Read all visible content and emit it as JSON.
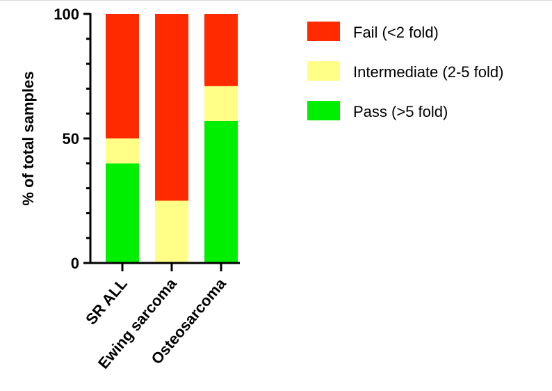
{
  "chart_data": {
    "type": "bar",
    "stacked": true,
    "categories": [
      "SR ALL",
      "Ewing sarcoma",
      "Osteosarcoma"
    ],
    "series": [
      {
        "name": "Pass (>5 fold)",
        "color": "#00ee00",
        "values": [
          40,
          0,
          57
        ]
      },
      {
        "name": "Intermediate (2-5 fold)",
        "color": "#ffff88",
        "values": [
          10,
          25,
          14
        ]
      },
      {
        "name": "Fail (<2 fold)",
        "color": "#ff2a00",
        "values": [
          50,
          75,
          29
        ]
      }
    ],
    "legend_order": [
      "Fail (<2 fold)",
      "Intermediate (2-5 fold)",
      "Pass (>5 fold)"
    ],
    "ylabel": "% of total samples",
    "xlabel": "",
    "ylim": [
      0,
      100
    ],
    "yticks": [
      0,
      50,
      100
    ],
    "yticks_minor_step": 10,
    "legend_position": "right",
    "grid": false
  }
}
